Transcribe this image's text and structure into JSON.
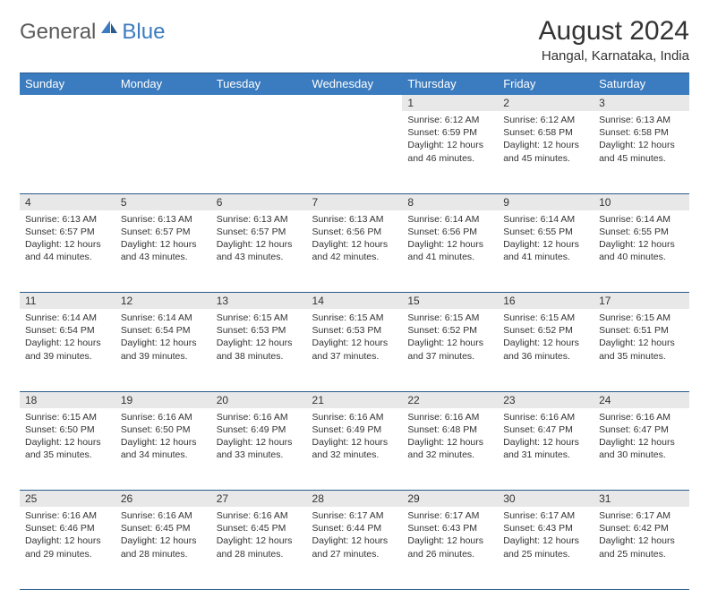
{
  "logo": {
    "text1": "General",
    "text2": "Blue"
  },
  "title": "August 2024",
  "location": "Hangal, Karnataka, India",
  "weekdays": [
    "Sunday",
    "Monday",
    "Tuesday",
    "Wednesday",
    "Thursday",
    "Friday",
    "Saturday"
  ],
  "colors": {
    "header_bg": "#3b7bbf",
    "header_text": "#ffffff",
    "daynum_bg": "#e8e8e8",
    "border": "#2a5a8a",
    "text": "#333333",
    "logo_gray": "#5a5a5a",
    "logo_blue": "#3b7bbf"
  },
  "weeks": [
    {
      "nums": [
        "",
        "",
        "",
        "",
        "1",
        "2",
        "3"
      ],
      "cells": [
        null,
        null,
        null,
        null,
        {
          "sr": "6:12 AM",
          "ss": "6:59 PM",
          "dl": "12 hours and 46 minutes."
        },
        {
          "sr": "6:12 AM",
          "ss": "6:58 PM",
          "dl": "12 hours and 45 minutes."
        },
        {
          "sr": "6:13 AM",
          "ss": "6:58 PM",
          "dl": "12 hours and 45 minutes."
        }
      ]
    },
    {
      "nums": [
        "4",
        "5",
        "6",
        "7",
        "8",
        "9",
        "10"
      ],
      "cells": [
        {
          "sr": "6:13 AM",
          "ss": "6:57 PM",
          "dl": "12 hours and 44 minutes."
        },
        {
          "sr": "6:13 AM",
          "ss": "6:57 PM",
          "dl": "12 hours and 43 minutes."
        },
        {
          "sr": "6:13 AM",
          "ss": "6:57 PM",
          "dl": "12 hours and 43 minutes."
        },
        {
          "sr": "6:13 AM",
          "ss": "6:56 PM",
          "dl": "12 hours and 42 minutes."
        },
        {
          "sr": "6:14 AM",
          "ss": "6:56 PM",
          "dl": "12 hours and 41 minutes."
        },
        {
          "sr": "6:14 AM",
          "ss": "6:55 PM",
          "dl": "12 hours and 41 minutes."
        },
        {
          "sr": "6:14 AM",
          "ss": "6:55 PM",
          "dl": "12 hours and 40 minutes."
        }
      ]
    },
    {
      "nums": [
        "11",
        "12",
        "13",
        "14",
        "15",
        "16",
        "17"
      ],
      "cells": [
        {
          "sr": "6:14 AM",
          "ss": "6:54 PM",
          "dl": "12 hours and 39 minutes."
        },
        {
          "sr": "6:14 AM",
          "ss": "6:54 PM",
          "dl": "12 hours and 39 minutes."
        },
        {
          "sr": "6:15 AM",
          "ss": "6:53 PM",
          "dl": "12 hours and 38 minutes."
        },
        {
          "sr": "6:15 AM",
          "ss": "6:53 PM",
          "dl": "12 hours and 37 minutes."
        },
        {
          "sr": "6:15 AM",
          "ss": "6:52 PM",
          "dl": "12 hours and 37 minutes."
        },
        {
          "sr": "6:15 AM",
          "ss": "6:52 PM",
          "dl": "12 hours and 36 minutes."
        },
        {
          "sr": "6:15 AM",
          "ss": "6:51 PM",
          "dl": "12 hours and 35 minutes."
        }
      ]
    },
    {
      "nums": [
        "18",
        "19",
        "20",
        "21",
        "22",
        "23",
        "24"
      ],
      "cells": [
        {
          "sr": "6:15 AM",
          "ss": "6:50 PM",
          "dl": "12 hours and 35 minutes."
        },
        {
          "sr": "6:16 AM",
          "ss": "6:50 PM",
          "dl": "12 hours and 34 minutes."
        },
        {
          "sr": "6:16 AM",
          "ss": "6:49 PM",
          "dl": "12 hours and 33 minutes."
        },
        {
          "sr": "6:16 AM",
          "ss": "6:49 PM",
          "dl": "12 hours and 32 minutes."
        },
        {
          "sr": "6:16 AM",
          "ss": "6:48 PM",
          "dl": "12 hours and 32 minutes."
        },
        {
          "sr": "6:16 AM",
          "ss": "6:47 PM",
          "dl": "12 hours and 31 minutes."
        },
        {
          "sr": "6:16 AM",
          "ss": "6:47 PM",
          "dl": "12 hours and 30 minutes."
        }
      ]
    },
    {
      "nums": [
        "25",
        "26",
        "27",
        "28",
        "29",
        "30",
        "31"
      ],
      "cells": [
        {
          "sr": "6:16 AM",
          "ss": "6:46 PM",
          "dl": "12 hours and 29 minutes."
        },
        {
          "sr": "6:16 AM",
          "ss": "6:45 PM",
          "dl": "12 hours and 28 minutes."
        },
        {
          "sr": "6:16 AM",
          "ss": "6:45 PM",
          "dl": "12 hours and 28 minutes."
        },
        {
          "sr": "6:17 AM",
          "ss": "6:44 PM",
          "dl": "12 hours and 27 minutes."
        },
        {
          "sr": "6:17 AM",
          "ss": "6:43 PM",
          "dl": "12 hours and 26 minutes."
        },
        {
          "sr": "6:17 AM",
          "ss": "6:43 PM",
          "dl": "12 hours and 25 minutes."
        },
        {
          "sr": "6:17 AM",
          "ss": "6:42 PM",
          "dl": "12 hours and 25 minutes."
        }
      ]
    }
  ],
  "labels": {
    "sunrise": "Sunrise:",
    "sunset": "Sunset:",
    "daylight": "Daylight:"
  }
}
